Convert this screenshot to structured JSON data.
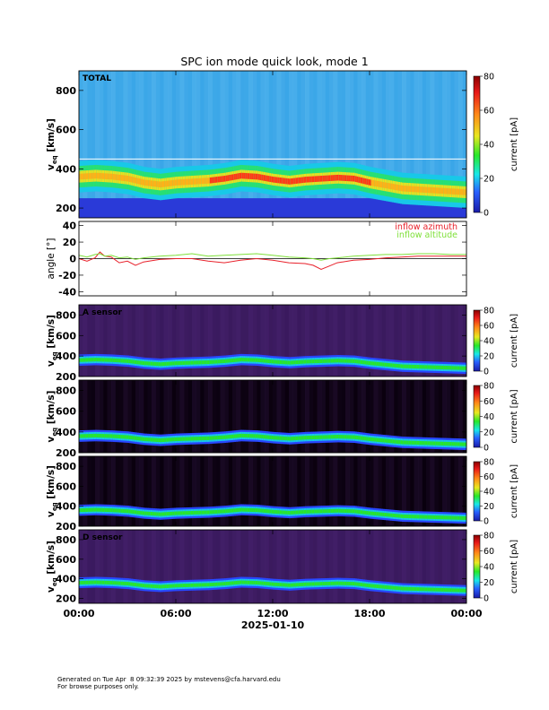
{
  "title": "SPC ion mode quick look, mode 1",
  "footer": {
    "line1": "Generated on Tue Apr  8 09:32:39 2025 by mstevens@cfa.harvard.edu",
    "line2": "For browse purposes only."
  },
  "chart_data": {
    "type": "heatmap",
    "time_axis": {
      "date_label": "2025-01-10",
      "tick_labels": [
        "00:00",
        "06:00",
        "12:00",
        "18:00",
        "00:00"
      ],
      "range_hours": [
        0,
        24
      ]
    },
    "panels": [
      {
        "kind": "spectrogram",
        "label": "TOTAL",
        "ylabel": "v",
        "ylabel_sub": "eq",
        "yunit": "[km/s]",
        "ylim": [
          150,
          900
        ],
        "yticks": [
          200,
          400,
          600,
          800
        ],
        "colorbar": {
          "label": "current [pA]",
          "range": [
            0,
            80
          ],
          "ticks": [
            0,
            20,
            40,
            60,
            80
          ]
        },
        "background": "cyan-blue"
      },
      {
        "kind": "line",
        "ylabel": "angle [°]",
        "ylim": [
          -45,
          45
        ],
        "yticks": [
          -40,
          -20,
          0,
          20,
          40
        ],
        "series": [
          {
            "name": "inflow azimuth",
            "color": "#e8202a",
            "x": [
              0,
              0.5,
              1,
              1.3,
              1.6,
              2,
              2.5,
              3,
              3.5,
              4,
              5,
              6,
              7,
              8,
              9,
              10,
              11,
              12,
              13,
              14,
              14.5,
              15,
              15.5,
              16,
              17,
              18,
              19,
              20,
              21,
              22,
              23,
              24
            ],
            "y": [
              0,
              -3,
              1,
              8,
              3,
              2,
              -5,
              -3,
              -8,
              -4,
              -1,
              0,
              0,
              -3,
              -5,
              -2,
              0,
              -2,
              -5,
              -6,
              -8,
              -13,
              -9,
              -5,
              -2,
              -1,
              1,
              2,
              3,
              3,
              3,
              3
            ]
          },
          {
            "name": "inflow altitude",
            "color": "#7fe03a",
            "x": [
              0,
              0.5,
              1,
              1.3,
              1.6,
              2,
              2.5,
              3,
              3.5,
              4,
              5,
              6,
              7,
              8,
              9,
              10,
              11,
              12,
              13,
              14,
              14.5,
              15,
              15.5,
              16,
              17,
              18,
              19,
              20,
              21,
              22,
              23,
              24
            ],
            "y": [
              4,
              2,
              5,
              6,
              3,
              4,
              1,
              2,
              -1,
              1,
              3,
              4,
              6,
              3,
              4,
              5,
              6,
              4,
              2,
              1,
              0,
              -2,
              0,
              1,
              3,
              4,
              5,
              5,
              6,
              6,
              5,
              5
            ]
          }
        ]
      },
      {
        "kind": "spectrogram",
        "label": "A sensor",
        "ylabel": "v",
        "ylabel_sub": "eq",
        "yunit": "[km/s]",
        "ylim": [
          200,
          900
        ],
        "yticks": [
          200,
          400,
          600,
          800
        ],
        "colorbar": {
          "label": "current [pA]",
          "range": [
            0,
            80
          ],
          "ticks": [
            0,
            20,
            40,
            60,
            80
          ]
        },
        "background": "purple"
      },
      {
        "kind": "spectrogram",
        "label": "",
        "ylabel": "v",
        "ylabel_sub": "eq",
        "yunit": "[km/s]",
        "ylim": [
          200,
          900
        ],
        "yticks": [
          200,
          400,
          600,
          800
        ],
        "colorbar": {
          "label": "current [pA]",
          "range": [
            0,
            80
          ],
          "ticks": [
            0,
            20,
            40,
            60,
            80
          ]
        },
        "background": "black"
      },
      {
        "kind": "spectrogram",
        "label": "",
        "ylabel": "v",
        "ylabel_sub": "eq",
        "yunit": "[km/s]",
        "ylim": [
          200,
          900
        ],
        "yticks": [
          200,
          400,
          600,
          800
        ],
        "colorbar": {
          "label": "current [pA]",
          "range": [
            0,
            80
          ],
          "ticks": [
            0,
            20,
            40,
            60,
            80
          ]
        },
        "background": "black"
      },
      {
        "kind": "spectrogram",
        "label": "D sensor",
        "ylabel": "v",
        "ylabel_sub": "eq",
        "yunit": "[km/s]",
        "ylim": [
          150,
          900
        ],
        "yticks": [
          200,
          400,
          600,
          800
        ],
        "colorbar": {
          "label": "current [pA]",
          "range": [
            0,
            80
          ],
          "ticks": [
            0,
            20,
            40,
            60,
            80
          ]
        },
        "background": "purple"
      }
    ],
    "peak_velocity": {
      "x": [
        0,
        1,
        2,
        3,
        4,
        5,
        6,
        7,
        8,
        9,
        10,
        11,
        12,
        13,
        14,
        15,
        16,
        17,
        18,
        19,
        20,
        21,
        22,
        23,
        24
      ],
      "y": [
        360,
        365,
        360,
        350,
        330,
        320,
        330,
        335,
        340,
        350,
        365,
        360,
        345,
        335,
        345,
        350,
        355,
        350,
        330,
        315,
        300,
        295,
        290,
        285,
        280
      ]
    }
  }
}
